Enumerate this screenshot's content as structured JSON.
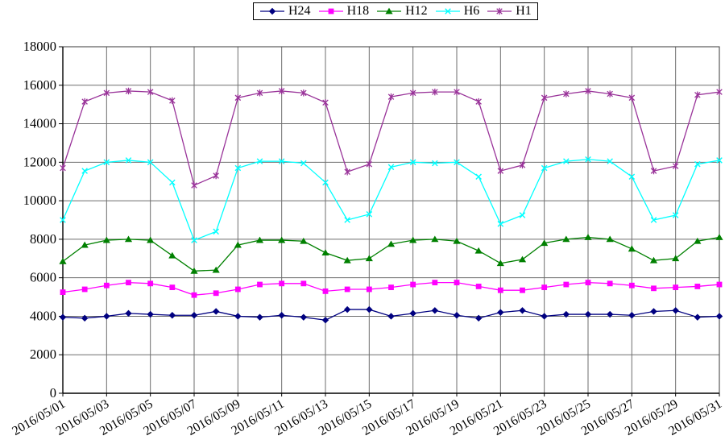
{
  "chart_data": {
    "type": "line",
    "title": "",
    "xlabel": "",
    "ylabel": "",
    "x": [
      "2016/05/01",
      "2016/05/02",
      "2016/05/03",
      "2016/05/04",
      "2016/05/05",
      "2016/05/06",
      "2016/05/07",
      "2016/05/08",
      "2016/05/09",
      "2016/05/10",
      "2016/05/11",
      "2016/05/12",
      "2016/05/13",
      "2016/05/14",
      "2016/05/15",
      "2016/05/16",
      "2016/05/17",
      "2016/05/18",
      "2016/05/19",
      "2016/05/20",
      "2016/05/21",
      "2016/05/22",
      "2016/05/23",
      "2016/05/24",
      "2016/05/25",
      "2016/05/26",
      "2016/05/27",
      "2016/05/28",
      "2016/05/29",
      "2016/05/30",
      "2016/05/31"
    ],
    "x_tick_labels": [
      "2016/05/01",
      "2016/05/03",
      "2016/05/05",
      "2016/05/07",
      "2016/05/09",
      "2016/05/11",
      "2016/05/13",
      "2016/05/15",
      "2016/05/17",
      "2016/05/19",
      "2016/05/21",
      "2016/05/23",
      "2016/05/25",
      "2016/05/27",
      "2016/05/29",
      "2016/05/31"
    ],
    "x_tick_every": 2,
    "ylim": [
      0,
      18000
    ],
    "y_tick_step": 2000,
    "y_tick_labels": [
      "0",
      "2000",
      "4000",
      "6000",
      "8000",
      "10000",
      "12000",
      "14000",
      "16000",
      "18000"
    ],
    "grid": true,
    "legend_position": "top-center",
    "background": "#FFFFFF",
    "axis_color": "#000000",
    "grid_color": "#6e6e6e",
    "series": [
      {
        "name": "H24",
        "color": "#000080",
        "marker": "diamond",
        "values": [
          3950,
          3900,
          4000,
          4150,
          4100,
          4050,
          4050,
          4250,
          4000,
          3950,
          4050,
          3950,
          3800,
          4350,
          4350,
          4000,
          4150,
          4300,
          4050,
          3900,
          4200,
          4300,
          4000,
          4100,
          4100,
          4100,
          4050,
          4250,
          4300,
          3950,
          4000
        ]
      },
      {
        "name": "H18",
        "color": "#FF00FF",
        "marker": "square",
        "values": [
          5250,
          5400,
          5600,
          5750,
          5700,
          5500,
          5100,
          5200,
          5400,
          5650,
          5700,
          5700,
          5300,
          5400,
          5400,
          5500,
          5650,
          5750,
          5750,
          5550,
          5350,
          5350,
          5500,
          5650,
          5750,
          5700,
          5600,
          5450,
          5500,
          5550,
          5650
        ]
      },
      {
        "name": "H12",
        "color": "#008000",
        "marker": "triangle",
        "values": [
          6850,
          7700,
          7950,
          8000,
          7950,
          7150,
          6350,
          6400,
          7700,
          7950,
          7950,
          7900,
          7300,
          6900,
          7000,
          7750,
          7950,
          8000,
          7900,
          7400,
          6750,
          6950,
          7800,
          8000,
          8100,
          8000,
          7500,
          6900,
          7000,
          7900,
          8100
        ]
      },
      {
        "name": "H6",
        "color": "#00FFFF",
        "marker": "x",
        "values": [
          9000,
          11550,
          12000,
          12100,
          12000,
          10950,
          7950,
          8400,
          11700,
          12050,
          12050,
          11950,
          10950,
          9000,
          9300,
          11750,
          12000,
          11950,
          12000,
          11250,
          8800,
          9250,
          11700,
          12050,
          12150,
          12050,
          11250,
          9000,
          9250,
          11900,
          12100
        ]
      },
      {
        "name": "H1",
        "color": "#993399",
        "marker": "star",
        "values": [
          11700,
          15150,
          15600,
          15700,
          15650,
          15200,
          10800,
          11300,
          15350,
          15600,
          15700,
          15600,
          15100,
          11500,
          11900,
          15400,
          15600,
          15650,
          15650,
          15150,
          11550,
          11850,
          15350,
          15550,
          15700,
          15550,
          15350,
          11550,
          11800,
          15500,
          15650
        ]
      }
    ]
  }
}
